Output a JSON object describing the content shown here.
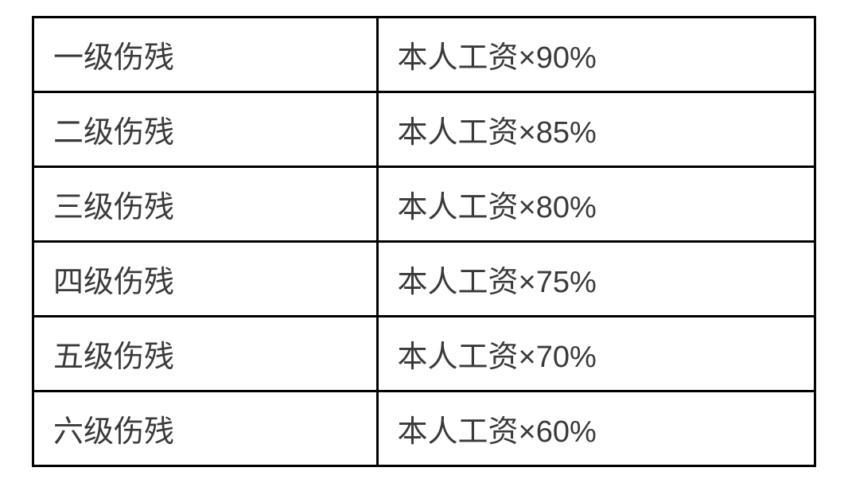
{
  "table": {
    "type": "table",
    "columns": [
      {
        "key": "level",
        "width_percent": 44,
        "align": "left"
      },
      {
        "key": "amount",
        "width_percent": 56,
        "align": "left"
      }
    ],
    "rows": [
      {
        "level": "一级伤残",
        "amount": "本人工资×90%"
      },
      {
        "level": "二级伤残",
        "amount": "本人工资×85%"
      },
      {
        "level": "三级伤残",
        "amount": "本人工资×80%"
      },
      {
        "level": "四级伤残",
        "amount": "本人工资×75%"
      },
      {
        "level": "五级伤残",
        "amount": "本人工资×70%"
      },
      {
        "level": "六级伤残",
        "amount": "本人工资×60%"
      }
    ],
    "border_color": "#000000",
    "border_width": 3,
    "background_color": "#ffffff",
    "text_color": "#3a3a3a",
    "font_size": 38,
    "cell_padding_v": 18,
    "cell_padding_h": 24
  }
}
